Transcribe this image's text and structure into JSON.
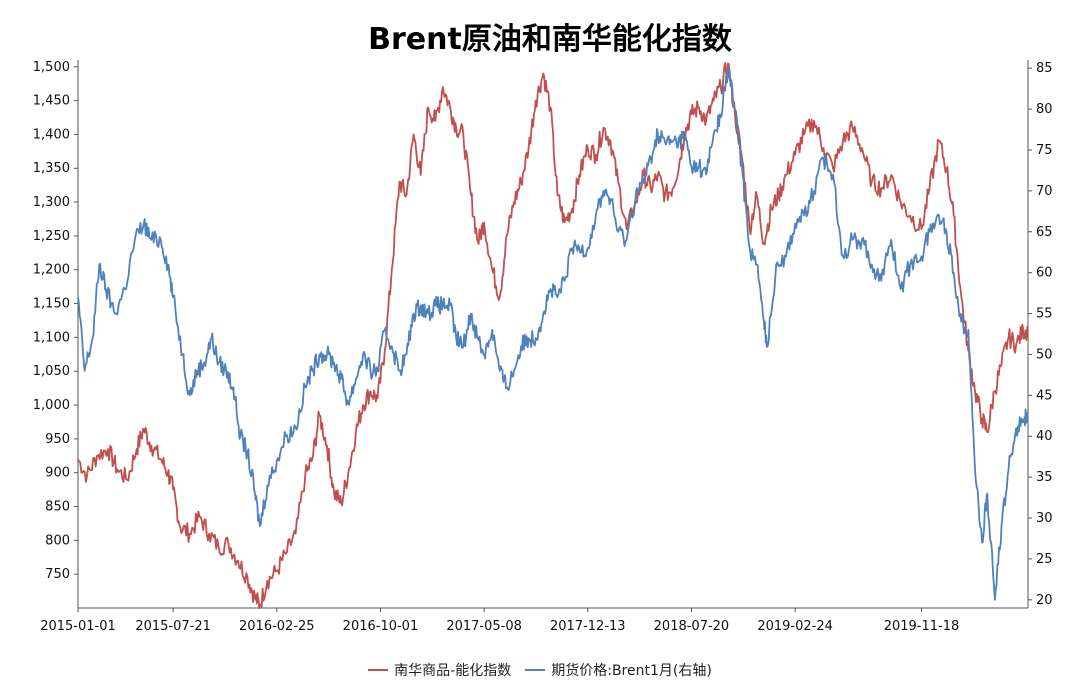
{
  "chart_data": {
    "type": "line",
    "title": "Brent原油和南华能化指数",
    "xlabel": "",
    "ylabel_left": "",
    "ylabel_right": "",
    "x_start": "2015-01-01",
    "x_end": "2020-06-30",
    "x_tick_labels": [
      "2015-01-01",
      "2015-07-21",
      "2016-02-25",
      "2016-10-01",
      "2017-05-08",
      "2017-12-13",
      "2018-07-20",
      "2019-02-24",
      "2019-11-18"
    ],
    "y_left": {
      "min": 700,
      "max": 1510,
      "ticks": [
        750,
        800,
        850,
        900,
        950,
        1000,
        1050,
        1100,
        1150,
        1200,
        1250,
        1300,
        1350,
        1400,
        1450,
        1500
      ],
      "tick_labels": [
        "750",
        "800",
        "850",
        "900",
        "950",
        "1,000",
        "1,050",
        "1,100",
        "1,150",
        "1,200",
        "1,250",
        "1,300",
        "1,350",
        "1,400",
        "1,450",
        "1,500"
      ]
    },
    "y_right": {
      "min": 19,
      "max": 86,
      "ticks": [
        20,
        25,
        30,
        35,
        40,
        45,
        50,
        55,
        60,
        65,
        70,
        75,
        80,
        85
      ],
      "tick_labels": [
        "20",
        "25",
        "30",
        "35",
        "40",
        "45",
        "50",
        "55",
        "60",
        "65",
        "70",
        "75",
        "80",
        "85"
      ]
    },
    "grid": false,
    "legend_position": "bottom",
    "series": [
      {
        "name": "南华商品-能化指数",
        "axis": "left",
        "color": "#c0504d",
        "points": [
          [
            "2015-01-01",
            920
          ],
          [
            "2015-01-20",
            895
          ],
          [
            "2015-02-10",
            925
          ],
          [
            "2015-03-05",
            935
          ],
          [
            "2015-03-25",
            905
          ],
          [
            "2015-04-15",
            890
          ],
          [
            "2015-05-05",
            935
          ],
          [
            "2015-05-20",
            965
          ],
          [
            "2015-06-05",
            940
          ],
          [
            "2015-06-25",
            920
          ],
          [
            "2015-07-10",
            900
          ],
          [
            "2015-07-21",
            875
          ],
          [
            "2015-08-05",
            820
          ],
          [
            "2015-08-25",
            810
          ],
          [
            "2015-09-15",
            835
          ],
          [
            "2015-10-05",
            810
          ],
          [
            "2015-10-25",
            790
          ],
          [
            "2015-11-15",
            795
          ],
          [
            "2015-12-05",
            770
          ],
          [
            "2015-12-25",
            745
          ],
          [
            "2016-01-10",
            715
          ],
          [
            "2016-01-20",
            705
          ],
          [
            "2016-02-05",
            740
          ],
          [
            "2016-02-25",
            755
          ],
          [
            "2016-03-15",
            780
          ],
          [
            "2016-04-05",
            810
          ],
          [
            "2016-04-25",
            895
          ],
          [
            "2016-05-10",
            920
          ],
          [
            "2016-05-25",
            985
          ],
          [
            "2016-06-10",
            940
          ],
          [
            "2016-06-25",
            870
          ],
          [
            "2016-07-10",
            855
          ],
          [
            "2016-07-25",
            900
          ],
          [
            "2016-08-10",
            960
          ],
          [
            "2016-08-25",
            1000
          ],
          [
            "2016-09-10",
            1020
          ],
          [
            "2016-09-25",
            1010
          ],
          [
            "2016-10-10",
            1080
          ],
          [
            "2016-10-25",
            1200
          ],
          [
            "2016-11-10",
            1330
          ],
          [
            "2016-11-25",
            1310
          ],
          [
            "2016-12-10",
            1400
          ],
          [
            "2016-12-25",
            1340
          ],
          [
            "2017-01-10",
            1440
          ],
          [
            "2017-01-25",
            1420
          ],
          [
            "2017-02-10",
            1470
          ],
          [
            "2017-02-25",
            1440
          ],
          [
            "2017-03-10",
            1410
          ],
          [
            "2017-03-25",
            1400
          ],
          [
            "2017-04-10",
            1310
          ],
          [
            "2017-04-25",
            1240
          ],
          [
            "2017-05-08",
            1270
          ],
          [
            "2017-05-25",
            1200
          ],
          [
            "2017-06-10",
            1160
          ],
          [
            "2017-06-25",
            1250
          ],
          [
            "2017-07-10",
            1300
          ],
          [
            "2017-07-25",
            1330
          ],
          [
            "2017-08-10",
            1380
          ],
          [
            "2017-08-25",
            1450
          ],
          [
            "2017-09-10",
            1490
          ],
          [
            "2017-09-25",
            1440
          ],
          [
            "2017-10-10",
            1310
          ],
          [
            "2017-10-25",
            1270
          ],
          [
            "2017-11-10",
            1290
          ],
          [
            "2017-11-25",
            1340
          ],
          [
            "2017-12-13",
            1380
          ],
          [
            "2017-12-30",
            1370
          ],
          [
            "2018-01-15",
            1410
          ],
          [
            "2018-01-30",
            1390
          ],
          [
            "2018-02-15",
            1330
          ],
          [
            "2018-03-05",
            1260
          ],
          [
            "2018-03-25",
            1300
          ],
          [
            "2018-04-10",
            1340
          ],
          [
            "2018-04-25",
            1320
          ],
          [
            "2018-05-10",
            1340
          ],
          [
            "2018-05-25",
            1310
          ],
          [
            "2018-06-10",
            1320
          ],
          [
            "2018-06-25",
            1360
          ],
          [
            "2018-07-05",
            1400
          ],
          [
            "2018-07-20",
            1430
          ],
          [
            "2018-08-05",
            1440
          ],
          [
            "2018-08-20",
            1420
          ],
          [
            "2018-09-05",
            1450
          ],
          [
            "2018-09-20",
            1470
          ],
          [
            "2018-10-05",
            1505
          ],
          [
            "2018-10-20",
            1430
          ],
          [
            "2018-11-05",
            1360
          ],
          [
            "2018-11-20",
            1260
          ],
          [
            "2018-12-05",
            1310
          ],
          [
            "2018-12-20",
            1240
          ],
          [
            "2019-01-05",
            1290
          ],
          [
            "2019-01-20",
            1310
          ],
          [
            "2019-02-05",
            1340
          ],
          [
            "2019-02-24",
            1370
          ],
          [
            "2019-03-15",
            1400
          ],
          [
            "2019-04-05",
            1420
          ],
          [
            "2019-04-25",
            1380
          ],
          [
            "2019-05-15",
            1350
          ],
          [
            "2019-06-05",
            1390
          ],
          [
            "2019-06-25",
            1410
          ],
          [
            "2019-07-15",
            1380
          ],
          [
            "2019-08-05",
            1330
          ],
          [
            "2019-08-25",
            1320
          ],
          [
            "2019-09-15",
            1340
          ],
          [
            "2019-10-05",
            1300
          ],
          [
            "2019-10-25",
            1280
          ],
          [
            "2019-11-18",
            1260
          ],
          [
            "2019-12-05",
            1320
          ],
          [
            "2019-12-25",
            1390
          ],
          [
            "2020-01-10",
            1350
          ],
          [
            "2020-01-25",
            1280
          ],
          [
            "2020-02-10",
            1160
          ],
          [
            "2020-02-25",
            1080
          ],
          [
            "2020-03-10",
            1020
          ],
          [
            "2020-03-25",
            980
          ],
          [
            "2020-04-05",
            960
          ],
          [
            "2020-04-20",
            1020
          ],
          [
            "2020-05-05",
            1060
          ],
          [
            "2020-05-20",
            1100
          ],
          [
            "2020-06-05",
            1090
          ],
          [
            "2020-06-20",
            1110
          ],
          [
            "2020-06-30",
            1110
          ]
        ]
      },
      {
        "name": "期货价格:Brent1月(右轴)",
        "axis": "right",
        "color": "#4f81bd",
        "points": [
          [
            "2015-01-01",
            57
          ],
          [
            "2015-01-15",
            48
          ],
          [
            "2015-02-01",
            52
          ],
          [
            "2015-02-15",
            61
          ],
          [
            "2015-03-01",
            58
          ],
          [
            "2015-03-20",
            55
          ],
          [
            "2015-04-10",
            58
          ],
          [
            "2015-05-01",
            64
          ],
          [
            "2015-05-20",
            66
          ],
          [
            "2015-06-05",
            64
          ],
          [
            "2015-06-25",
            64
          ],
          [
            "2015-07-10",
            61
          ],
          [
            "2015-07-21",
            57
          ],
          [
            "2015-08-10",
            50
          ],
          [
            "2015-08-25",
            45
          ],
          [
            "2015-09-10",
            48
          ],
          [
            "2015-09-25",
            49
          ],
          [
            "2015-10-10",
            52
          ],
          [
            "2015-10-25",
            49
          ],
          [
            "2015-11-10",
            48
          ],
          [
            "2015-11-25",
            46
          ],
          [
            "2015-12-10",
            40
          ],
          [
            "2015-12-25",
            38
          ],
          [
            "2016-01-10",
            33
          ],
          [
            "2016-01-20",
            29
          ],
          [
            "2016-02-05",
            34
          ],
          [
            "2016-02-25",
            37
          ],
          [
            "2016-03-15",
            40
          ],
          [
            "2016-04-05",
            41
          ],
          [
            "2016-04-25",
            46
          ],
          [
            "2016-05-10",
            48
          ],
          [
            "2016-05-25",
            50
          ],
          [
            "2016-06-10",
            50
          ],
          [
            "2016-06-25",
            49
          ],
          [
            "2016-07-10",
            47
          ],
          [
            "2016-07-25",
            44
          ],
          [
            "2016-08-10",
            47
          ],
          [
            "2016-08-25",
            50
          ],
          [
            "2016-09-10",
            48
          ],
          [
            "2016-09-25",
            48
          ],
          [
            "2016-10-10",
            53
          ],
          [
            "2016-10-25",
            51
          ],
          [
            "2016-11-10",
            48
          ],
          [
            "2016-11-25",
            50
          ],
          [
            "2016-12-10",
            55
          ],
          [
            "2016-12-25",
            56
          ],
          [
            "2017-01-10",
            55
          ],
          [
            "2017-01-25",
            56
          ],
          [
            "2017-02-10",
            56
          ],
          [
            "2017-02-25",
            56
          ],
          [
            "2017-03-10",
            52
          ],
          [
            "2017-03-25",
            51
          ],
          [
            "2017-04-10",
            55
          ],
          [
            "2017-04-25",
            52
          ],
          [
            "2017-05-08",
            50
          ],
          [
            "2017-05-25",
            53
          ],
          [
            "2017-06-10",
            48
          ],
          [
            "2017-06-25",
            46
          ],
          [
            "2017-07-10",
            48
          ],
          [
            "2017-07-25",
            51
          ],
          [
            "2017-08-10",
            52
          ],
          [
            "2017-08-25",
            52
          ],
          [
            "2017-09-10",
            55
          ],
          [
            "2017-09-25",
            58
          ],
          [
            "2017-10-10",
            57
          ],
          [
            "2017-10-25",
            59
          ],
          [
            "2017-11-10",
            63
          ],
          [
            "2017-11-25",
            63
          ],
          [
            "2017-12-13",
            63
          ],
          [
            "2017-12-30",
            67
          ],
          [
            "2018-01-15",
            70
          ],
          [
            "2018-01-30",
            69
          ],
          [
            "2018-02-15",
            65
          ],
          [
            "2018-03-05",
            64
          ],
          [
            "2018-03-25",
            70
          ],
          [
            "2018-04-10",
            71
          ],
          [
            "2018-04-25",
            74
          ],
          [
            "2018-05-10",
            77
          ],
          [
            "2018-05-25",
            76
          ],
          [
            "2018-06-10",
            76
          ],
          [
            "2018-06-25",
            76
          ],
          [
            "2018-07-05",
            77
          ],
          [
            "2018-07-20",
            73
          ],
          [
            "2018-08-05",
            73
          ],
          [
            "2018-08-20",
            72
          ],
          [
            "2018-09-05",
            77
          ],
          [
            "2018-09-20",
            79
          ],
          [
            "2018-10-05",
            85
          ],
          [
            "2018-10-20",
            80
          ],
          [
            "2018-11-05",
            72
          ],
          [
            "2018-11-20",
            63
          ],
          [
            "2018-12-05",
            61
          ],
          [
            "2018-12-20",
            54
          ],
          [
            "2018-12-28",
            51
          ],
          [
            "2019-01-15",
            61
          ],
          [
            "2019-02-05",
            62
          ],
          [
            "2019-02-24",
            66
          ],
          [
            "2019-03-15",
            67
          ],
          [
            "2019-04-05",
            70
          ],
          [
            "2019-04-25",
            74
          ],
          [
            "2019-05-15",
            72
          ],
          [
            "2019-06-05",
            62
          ],
          [
            "2019-06-25",
            64
          ],
          [
            "2019-07-15",
            64
          ],
          [
            "2019-08-05",
            61
          ],
          [
            "2019-08-25",
            59
          ],
          [
            "2019-09-15",
            64
          ],
          [
            "2019-10-05",
            58
          ],
          [
            "2019-10-25",
            61
          ],
          [
            "2019-11-18",
            62
          ],
          [
            "2019-12-05",
            65
          ],
          [
            "2019-12-25",
            67
          ],
          [
            "2020-01-10",
            65
          ],
          [
            "2020-01-25",
            60
          ],
          [
            "2020-02-10",
            54
          ],
          [
            "2020-02-25",
            53
          ],
          [
            "2020-03-10",
            36
          ],
          [
            "2020-03-25",
            27
          ],
          [
            "2020-04-05",
            33
          ],
          [
            "2020-04-21",
            20
          ],
          [
            "2020-05-05",
            29
          ],
          [
            "2020-05-20",
            36
          ],
          [
            "2020-06-05",
            41
          ],
          [
            "2020-06-20",
            42
          ],
          [
            "2020-06-30",
            43
          ]
        ]
      }
    ]
  }
}
